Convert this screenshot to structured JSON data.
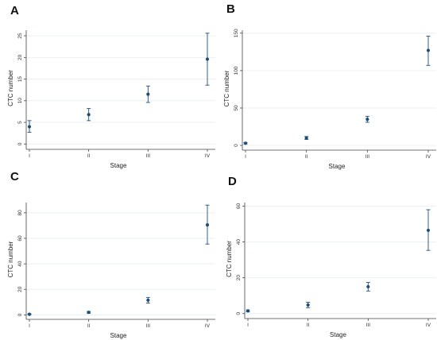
{
  "chart_data": [
    {
      "panel_label": "A",
      "type": "scatter",
      "xlabel": "Stage",
      "ylabel": "CTC number",
      "categories": [
        "I",
        "II",
        "III",
        "IV"
      ],
      "values": [
        4.0,
        6.8,
        11.5,
        19.6
      ],
      "error_low": [
        2.7,
        5.4,
        9.6,
        13.6
      ],
      "error_high": [
        5.4,
        8.2,
        13.4,
        25.6
      ],
      "yticks": [
        0,
        5,
        10,
        15,
        20,
        25
      ],
      "ylim": [
        -0.5,
        26.3
      ],
      "grid": true
    },
    {
      "panel_label": "B",
      "type": "scatter",
      "xlabel": "Stage",
      "ylabel": "CTC number",
      "categories": [
        "I",
        "II",
        "III",
        "IV"
      ],
      "values": [
        3,
        10,
        35,
        127
      ],
      "error_low": [
        2,
        8,
        31,
        107
      ],
      "error_high": [
        4,
        12,
        39,
        146
      ],
      "yticks": [
        0,
        50,
        100,
        150
      ],
      "ylim": [
        -2,
        154
      ],
      "grid": true
    },
    {
      "panel_label": "C",
      "type": "scatter",
      "xlabel": "Stage",
      "ylabel": "CTC number",
      "categories": [
        "I",
        "II",
        "III",
        "IV"
      ],
      "values": [
        0.5,
        2,
        11.5,
        70.5
      ],
      "error_low": [
        0.2,
        1.3,
        9.3,
        55.5
      ],
      "error_high": [
        0.8,
        2.7,
        13.7,
        86
      ],
      "yticks": [
        0,
        20,
        40,
        60,
        80
      ],
      "ylim": [
        -1,
        88
      ],
      "grid": true
    },
    {
      "panel_label": "D",
      "type": "scatter",
      "xlabel": "Stage",
      "ylabel": "CTC number",
      "categories": [
        "I",
        "II",
        "III",
        "IV"
      ],
      "values": [
        1.5,
        4.8,
        15,
        46.5
      ],
      "error_low": [
        1.0,
        3.3,
        12.6,
        35.3
      ],
      "error_high": [
        2.0,
        6.3,
        17.4,
        58
      ],
      "yticks": [
        0,
        20,
        40,
        60
      ],
      "ylim": [
        -1,
        62
      ],
      "grid": true
    }
  ],
  "colors": {
    "marker": "#1f4e79",
    "grid": "#eaf0f4",
    "axis": "#444444"
  }
}
